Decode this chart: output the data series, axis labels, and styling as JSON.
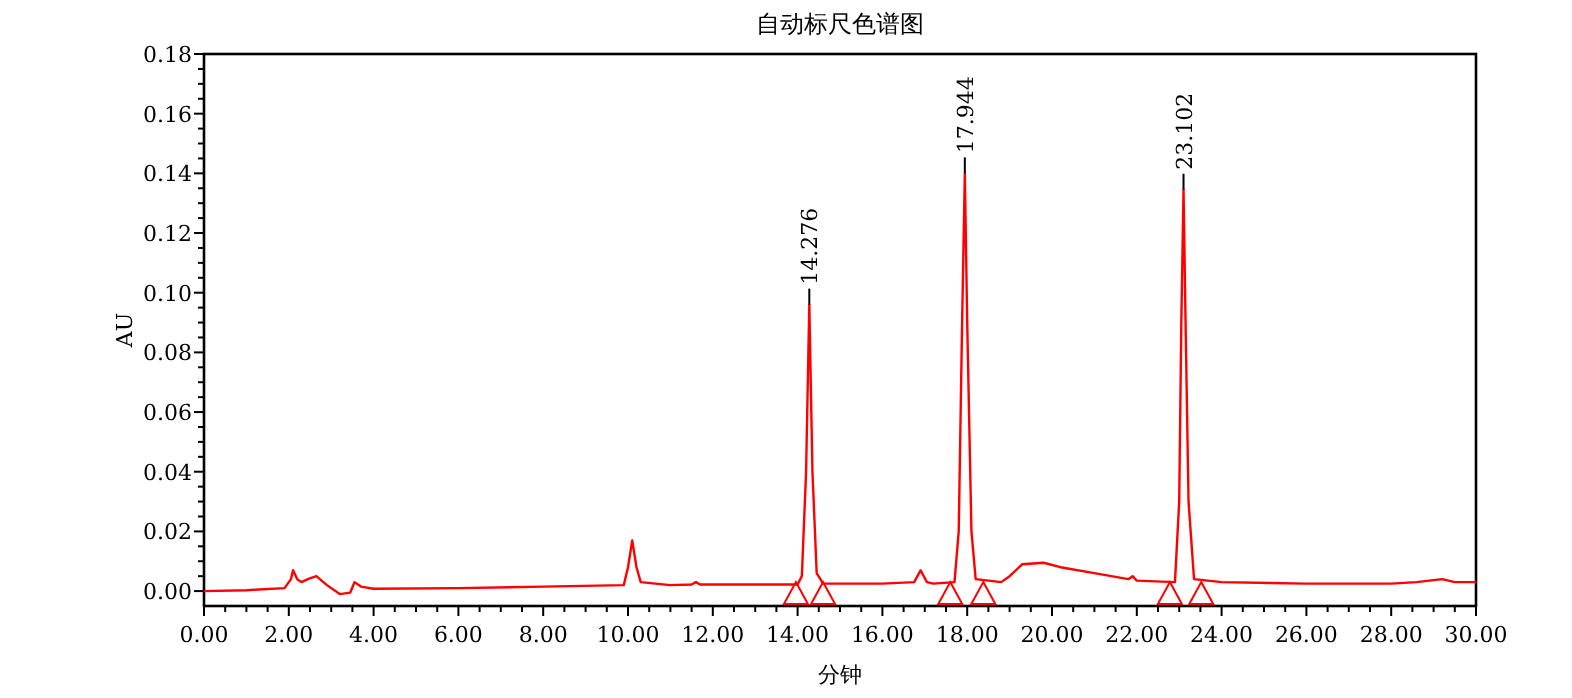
{
  "chart_data": {
    "type": "line",
    "title": "自动标尺色谱图",
    "xlabel": "分钟",
    "ylabel": "AU",
    "xlim": [
      0,
      30
    ],
    "ylim": [
      -0.005,
      0.18
    ],
    "xticks": [
      {
        "value": 0,
        "label": "0.00"
      },
      {
        "value": 2,
        "label": "2.00"
      },
      {
        "value": 4,
        "label": "4.00"
      },
      {
        "value": 6,
        "label": "6.00"
      },
      {
        "value": 8,
        "label": "8.00"
      },
      {
        "value": 10,
        "label": "10.00"
      },
      {
        "value": 12,
        "label": "12.00"
      },
      {
        "value": 14,
        "label": "14.00"
      },
      {
        "value": 16,
        "label": "16.00"
      },
      {
        "value": 18,
        "label": "18.00"
      },
      {
        "value": 20,
        "label": "20.00"
      },
      {
        "value": 22,
        "label": "22.00"
      },
      {
        "value": 24,
        "label": "24.00"
      },
      {
        "value": 26,
        "label": "26.00"
      },
      {
        "value": 28,
        "label": "28.00"
      },
      {
        "value": 30,
        "label": "30.00"
      }
    ],
    "yticks": [
      {
        "value": 0,
        "label": "0.00"
      },
      {
        "value": 0.02,
        "label": "0.02"
      },
      {
        "value": 0.04,
        "label": "0.04"
      },
      {
        "value": 0.06,
        "label": "0.06"
      },
      {
        "value": 0.08,
        "label": "0.08"
      },
      {
        "value": 0.1,
        "label": "0.10"
      },
      {
        "value": 0.12,
        "label": "0.12"
      },
      {
        "value": 0.14,
        "label": "0.14"
      },
      {
        "value": 0.16,
        "label": "0.16"
      },
      {
        "value": 0.18,
        "label": "0.18"
      }
    ],
    "series": [
      {
        "type": "line",
        "color": "#ff0000",
        "x": [
          0,
          1,
          1.9,
          2.05,
          2.1,
          2.2,
          2.3,
          2.45,
          2.65,
          2.9,
          3.2,
          3.45,
          3.55,
          3.7,
          4,
          6,
          8,
          9.9,
          10.0,
          10.1,
          10.2,
          10.3,
          11,
          11.5,
          11.6,
          11.7,
          12,
          14,
          14.1,
          14.2,
          14.276,
          14.35,
          14.45,
          14.6,
          16,
          16.75,
          16.9,
          17.05,
          17.2,
          17.7,
          17.8,
          17.88,
          17.944,
          18.0,
          18.1,
          18.2,
          18.8,
          19.0,
          19.3,
          19.8,
          20.2,
          21,
          21.8,
          21.9,
          22.0,
          22.9,
          23.0,
          23.05,
          23.102,
          23.15,
          23.22,
          23.35,
          24,
          26,
          28,
          28.6,
          29.2,
          29.5,
          30
        ],
        "values": [
          0,
          0.0003,
          0.001,
          0.004,
          0.007,
          0.004,
          0.003,
          0.004,
          0.005,
          0.002,
          -0.001,
          -0.0005,
          0.003,
          0.0015,
          0.0008,
          0.001,
          0.0015,
          0.002,
          0.008,
          0.017,
          0.008,
          0.003,
          0.002,
          0.0022,
          0.003,
          0.0022,
          0.0022,
          0.0022,
          0.005,
          0.04,
          0.096,
          0.04,
          0.006,
          0.0025,
          0.0025,
          0.003,
          0.007,
          0.003,
          0.0025,
          0.003,
          0.02,
          0.09,
          0.14,
          0.09,
          0.02,
          0.004,
          0.003,
          0.005,
          0.009,
          0.0095,
          0.008,
          0.006,
          0.004,
          0.005,
          0.0035,
          0.003,
          0.03,
          0.09,
          0.1345,
          0.09,
          0.03,
          0.004,
          0.003,
          0.0025,
          0.0025,
          0.003,
          0.004,
          0.003,
          0.003
        ]
      },
      {
        "type": "scatter",
        "color": "#ff0000",
        "marker": "triangle",
        "x": [
          13.96,
          14.6,
          17.6,
          18.38,
          22.78,
          23.52
        ],
        "values": [
          -0.001,
          -0.001,
          -0.001,
          -0.001,
          -0.001,
          -0.001
        ]
      }
    ],
    "annotations": [
      {
        "text": "14.276",
        "x": 14.276,
        "y": 0.096
      },
      {
        "text": "17.944",
        "x": 17.944,
        "y": 0.14
      },
      {
        "text": "23.102",
        "x": 23.102,
        "y": 0.1345
      }
    ]
  }
}
